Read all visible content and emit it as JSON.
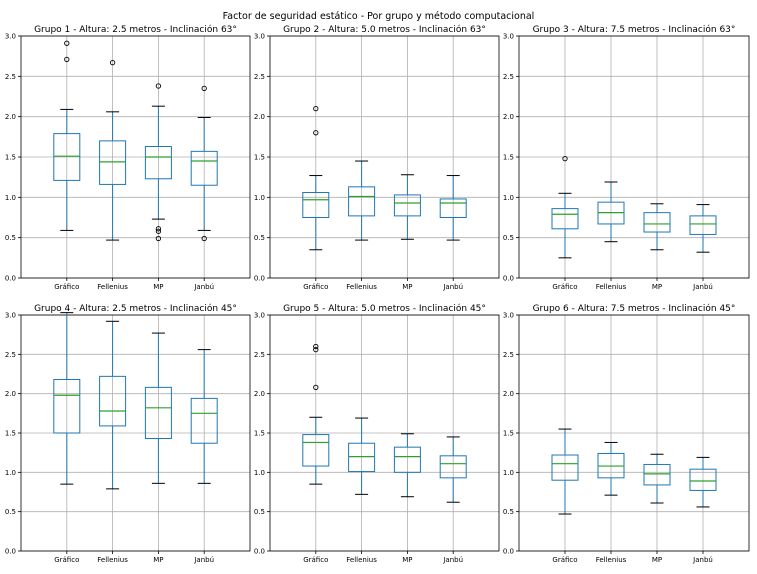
{
  "chart_data": {
    "type": "boxplot",
    "title": "Factor de seguridad estático - Por grupo y método computacional",
    "categories": [
      "Gráfico",
      "Fellenius",
      "MP",
      "Janbú"
    ],
    "ylim": [
      0,
      3.0
    ],
    "panels": [
      {
        "title": "Grupo 1 - Altura: 2.5 metros - Inclinación 63°",
        "yticks": [
          "0.0",
          "0.5",
          "1.0",
          "1.5",
          "2.0",
          "2.5",
          "3.0"
        ],
        "boxes": [
          {
            "whislo": 0.59,
            "q1": 1.21,
            "med": 1.51,
            "q3": 1.79,
            "whishi": 2.09,
            "fliers": [
              2.71,
              2.91
            ]
          },
          {
            "whislo": 0.47,
            "q1": 1.16,
            "med": 1.44,
            "q3": 1.7,
            "whishi": 2.06,
            "fliers": [
              2.67
            ]
          },
          {
            "whislo": 0.73,
            "q1": 1.23,
            "med": 1.5,
            "q3": 1.63,
            "whishi": 2.13,
            "fliers": [
              0.49,
              0.58,
              0.61,
              2.38
            ]
          },
          {
            "whislo": 0.59,
            "q1": 1.15,
            "med": 1.45,
            "q3": 1.57,
            "whishi": 1.99,
            "fliers": [
              0.49,
              2.35
            ]
          }
        ]
      },
      {
        "title": "Grupo 2 - Altura: 5.0 metros - Inclinación 63°",
        "yticks": [
          "0.0",
          "0.5",
          "1.0",
          "1.5",
          "2.0",
          "2.5",
          "3.0"
        ],
        "boxes": [
          {
            "whislo": 0.35,
            "q1": 0.75,
            "med": 0.97,
            "q3": 1.06,
            "whishi": 1.27,
            "fliers": [
              1.8,
              2.1
            ]
          },
          {
            "whislo": 0.47,
            "q1": 0.77,
            "med": 1.01,
            "q3": 1.13,
            "whishi": 1.45,
            "fliers": []
          },
          {
            "whislo": 0.48,
            "q1": 0.77,
            "med": 0.93,
            "q3": 1.03,
            "whishi": 1.28,
            "fliers": []
          },
          {
            "whislo": 0.47,
            "q1": 0.75,
            "med": 0.93,
            "q3": 0.98,
            "whishi": 1.27,
            "fliers": []
          }
        ]
      },
      {
        "title": "Grupo 3 - Altura: 7.5 metros - Inclinación 63°",
        "yticks": [
          "0.0",
          "0.5",
          "1.0",
          "1.5",
          "2.0",
          "2.5",
          "3.0"
        ],
        "boxes": [
          {
            "whislo": 0.25,
            "q1": 0.61,
            "med": 0.79,
            "q3": 0.86,
            "whishi": 1.05,
            "fliers": [
              1.48
            ]
          },
          {
            "whislo": 0.45,
            "q1": 0.67,
            "med": 0.81,
            "q3": 0.94,
            "whishi": 1.19,
            "fliers": []
          },
          {
            "whislo": 0.35,
            "q1": 0.57,
            "med": 0.67,
            "q3": 0.81,
            "whishi": 0.92,
            "fliers": []
          },
          {
            "whislo": 0.32,
            "q1": 0.54,
            "med": 0.67,
            "q3": 0.77,
            "whishi": 0.91,
            "fliers": []
          }
        ]
      },
      {
        "title": "Grupo 4 - Altura: 2.5 metros - Inclinación 45°",
        "yticks": [
          "0.0",
          "0.5",
          "1.0",
          "1.5",
          "2.0",
          "2.5",
          "3.0"
        ],
        "boxes": [
          {
            "whislo": 0.85,
            "q1": 1.5,
            "med": 1.98,
            "q3": 2.18,
            "whishi": 3.03,
            "fliers": []
          },
          {
            "whislo": 0.79,
            "q1": 1.59,
            "med": 1.78,
            "q3": 2.22,
            "whishi": 2.92,
            "fliers": []
          },
          {
            "whislo": 0.86,
            "q1": 1.43,
            "med": 1.82,
            "q3": 2.08,
            "whishi": 2.77,
            "fliers": []
          },
          {
            "whislo": 0.86,
            "q1": 1.37,
            "med": 1.75,
            "q3": 1.94,
            "whishi": 2.56,
            "fliers": []
          }
        ]
      },
      {
        "title": "Grupo 5 - Altura: 5.0 metros - Inclinación 45°",
        "yticks": [
          "0.0",
          "0.5",
          "1.0",
          "1.5",
          "2.0",
          "2.5",
          "3.0"
        ],
        "boxes": [
          {
            "whislo": 0.85,
            "q1": 1.08,
            "med": 1.38,
            "q3": 1.48,
            "whishi": 1.7,
            "fliers": [
              2.08,
              2.56,
              2.6
            ]
          },
          {
            "whislo": 0.72,
            "q1": 1.01,
            "med": 1.2,
            "q3": 1.37,
            "whishi": 1.69,
            "fliers": []
          },
          {
            "whislo": 0.69,
            "q1": 1.0,
            "med": 1.2,
            "q3": 1.32,
            "whishi": 1.49,
            "fliers": []
          },
          {
            "whislo": 0.62,
            "q1": 0.93,
            "med": 1.11,
            "q3": 1.21,
            "whishi": 1.45,
            "fliers": []
          }
        ]
      },
      {
        "title": "Grupo 6 - Altura: 7.5 metros - Inclinación 45°",
        "yticks": [
          "0.0",
          "0.5",
          "1.0",
          "1.5",
          "2.0",
          "2.5",
          "3.0"
        ],
        "boxes": [
          {
            "whislo": 0.47,
            "q1": 0.9,
            "med": 1.11,
            "q3": 1.22,
            "whishi": 1.55,
            "fliers": []
          },
          {
            "whislo": 0.71,
            "q1": 0.93,
            "med": 1.08,
            "q3": 1.24,
            "whishi": 1.38,
            "fliers": []
          },
          {
            "whislo": 0.61,
            "q1": 0.84,
            "med": 0.98,
            "q3": 1.1,
            "whishi": 1.23,
            "fliers": []
          },
          {
            "whislo": 0.56,
            "q1": 0.77,
            "med": 0.89,
            "q3": 1.04,
            "whishi": 1.19,
            "fliers": []
          }
        ]
      }
    ]
  }
}
